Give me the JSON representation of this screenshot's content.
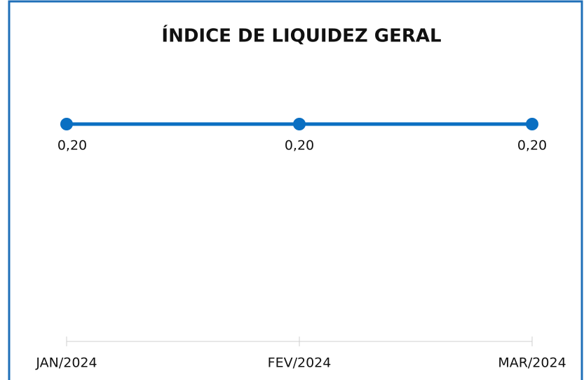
{
  "chart_data": {
    "type": "line",
    "title": "ÍNDICE DE LIQUIDEZ GERAL",
    "categories": [
      "JAN/2024",
      "FEV/2024",
      "MAR/2024"
    ],
    "series": [
      {
        "name": "Índice de Liquidez Geral",
        "color": "#0a6fc2",
        "values": [
          0.2,
          0.2,
          0.2
        ],
        "value_labels": [
          "0,20",
          "0,20",
          "0,20"
        ]
      }
    ],
    "ylim": [
      0,
      0.22
    ]
  }
}
